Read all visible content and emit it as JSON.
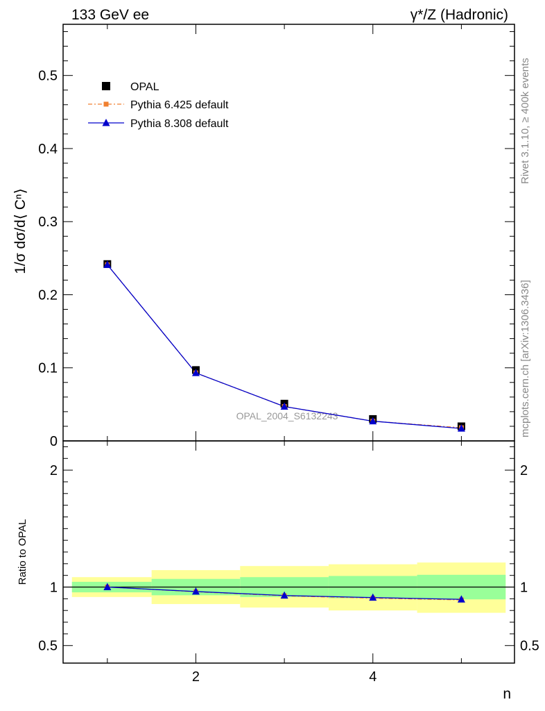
{
  "header": {
    "left_title": "133 GeV ee",
    "right_title": "γ*/Z (Hadronic)"
  },
  "side_text": {
    "rivet": "Rivet 3.1.10, ≥ 400k events",
    "mcplots": "mcplots.cern.ch [arXiv:1306.3436]"
  },
  "watermark": "OPAL_2004_S6132243",
  "chart_data": [
    {
      "type": "scatter",
      "panel": "main",
      "ylabel": "1/σ dσ/d⟨ Cⁿ⟩",
      "xlabel": "n",
      "xlim": [
        0.5,
        5.6
      ],
      "ylim": [
        0,
        0.57
      ],
      "y_ticks": [
        0,
        0.1,
        0.2,
        0.3,
        0.4,
        0.5
      ],
      "y_tick_labels": [
        "0",
        "0.1",
        "0.2",
        "0.3",
        "0.4",
        "0.5"
      ],
      "x": [
        1,
        2,
        3,
        4,
        5
      ],
      "legend_position": "top-left",
      "series": [
        {
          "name": "OPAL",
          "values": [
            0.242,
            0.097,
            0.051,
            0.03,
            0.02
          ],
          "color": "#000000",
          "marker": "square"
        },
        {
          "name": "Pythia 6.425 default",
          "values": [
            0.241,
            0.093,
            0.047,
            0.027,
            0.018
          ],
          "color": "#f08030",
          "marker": "square",
          "line": "dashed"
        },
        {
          "name": "Pythia 8.308 default",
          "values": [
            0.241,
            0.093,
            0.047,
            0.027,
            0.017
          ],
          "color": "#0000cc",
          "marker": "triangle",
          "line": "solid"
        }
      ]
    },
    {
      "type": "line",
      "panel": "ratio",
      "ylabel": "Ratio to OPAL",
      "xlabel": "n",
      "xlim": [
        0.5,
        5.6
      ],
      "ylim": [
        0.35,
        2.25
      ],
      "y_ticks": [
        0.5,
        1,
        2
      ],
      "y_tick_labels": [
        "0.5",
        "1",
        "2"
      ],
      "x_ticks": [
        2,
        4
      ],
      "x_tick_labels": [
        "2",
        "4"
      ],
      "x": [
        1,
        2,
        3,
        4,
        5
      ],
      "band_edges": [
        0.6,
        1.5,
        2.5,
        3.5,
        4.5,
        5.5
      ],
      "bands": {
        "green_color": "#99ff99",
        "yellow_color": "#ffff99",
        "green_lo": [
          0.955,
          0.93,
          0.915,
          0.905,
          0.895
        ],
        "green_hi": [
          1.045,
          1.07,
          1.085,
          1.095,
          1.105
        ],
        "yellow_lo": [
          0.915,
          0.855,
          0.825,
          0.8,
          0.78
        ],
        "yellow_hi": [
          1.085,
          1.145,
          1.18,
          1.195,
          1.21
        ]
      },
      "series": [
        {
          "name": "Pythia 6.425 default",
          "values": [
            1.0,
            0.96,
            0.925,
            0.905,
            0.89
          ],
          "color": "#f08030",
          "line": "dashed"
        },
        {
          "name": "Pythia 8.308 default",
          "values": [
            1.0,
            0.962,
            0.928,
            0.91,
            0.895
          ],
          "color": "#0000cc",
          "line": "solid"
        }
      ]
    }
  ]
}
